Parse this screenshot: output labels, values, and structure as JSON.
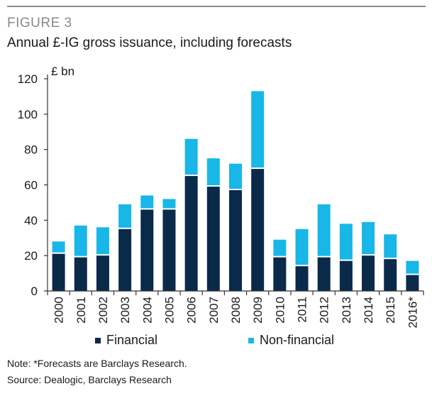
{
  "figure_label": "FIGURE 3",
  "title": "Annual £-IG gross issuance, including forecasts",
  "notes": {
    "note": "Note: *Forecasts are Barclays Research.",
    "source": "Source: Dealogic, Barclays Research"
  },
  "colors": {
    "financial": "#0a2a4a",
    "non_financial": "#19b6e8",
    "axis": "#333333"
  },
  "chart_data": {
    "type": "bar",
    "stacked": true,
    "title": "Annual £-IG gross issuance, including forecasts",
    "ylabel": "£ bn",
    "xlabel": "",
    "ylim": [
      0,
      120
    ],
    "yticks": [
      0,
      20,
      40,
      60,
      80,
      100,
      120
    ],
    "legend_position": "bottom",
    "categories": [
      "2000",
      "2001",
      "2002",
      "2003",
      "2004",
      "2005",
      "2006",
      "2007",
      "2008",
      "2009",
      "2010",
      "2011",
      "2012",
      "2013",
      "2014",
      "2015",
      "2016*"
    ],
    "series": [
      {
        "name": "Financial",
        "values": [
          21,
          19,
          20,
          35,
          46,
          46,
          65,
          59,
          57,
          69,
          19,
          14,
          19,
          17,
          20,
          18,
          9
        ]
      },
      {
        "name": "Non-financial",
        "values": [
          7,
          18,
          16,
          14,
          8,
          6,
          21,
          16,
          15,
          44,
          10,
          21,
          30,
          21,
          19,
          14,
          8
        ]
      }
    ]
  }
}
